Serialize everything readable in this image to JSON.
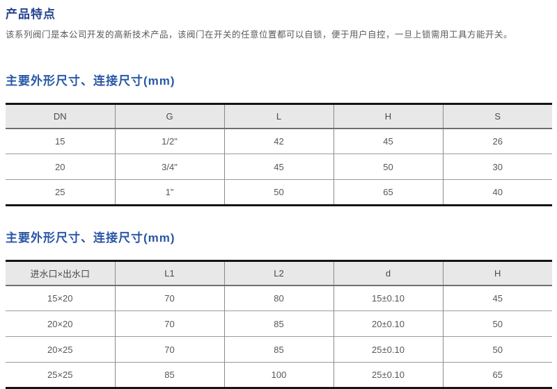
{
  "page": {
    "title": "产品特点",
    "description": "该系列阀门是本公司开发的高新技术产品，该阀门在开关的任意位置都可以自锁，便于用户自控，一旦上锁需用工具方能开关。"
  },
  "colors": {
    "title_blue": "#24418f",
    "section_heading_blue": "#2a57a5",
    "body_text_gray": "#595959",
    "table_header_bg": "#e8e8e8",
    "table_border_dark": "#141414",
    "table_border_light": "#9a9a9a"
  },
  "sections": [
    {
      "heading": "主要外形尺寸、连接尺寸(mm)",
      "table": {
        "headers": [
          "DN",
          "G",
          "L",
          "H",
          "S"
        ],
        "rows": [
          [
            "15",
            "1/2\"",
            "42",
            "45",
            "26"
          ],
          [
            "20",
            "3/4\"",
            "45",
            "50",
            "30"
          ],
          [
            "25",
            "1\"",
            "50",
            "65",
            "40"
          ]
        ]
      }
    },
    {
      "heading": "主要外形尺寸、连接尺寸(mm)",
      "table": {
        "headers": [
          "进水口×出水口",
          "L1",
          "L2",
          "d",
          "H"
        ],
        "rows": [
          [
            "15×20",
            "70",
            "80",
            "15±0.10",
            "45"
          ],
          [
            "20×20",
            "70",
            "85",
            "20±0.10",
            "50"
          ],
          [
            "20×25",
            "70",
            "85",
            "25±0.10",
            "50"
          ],
          [
            "25×25",
            "85",
            "100",
            "25±0.10",
            "65"
          ]
        ]
      }
    }
  ]
}
